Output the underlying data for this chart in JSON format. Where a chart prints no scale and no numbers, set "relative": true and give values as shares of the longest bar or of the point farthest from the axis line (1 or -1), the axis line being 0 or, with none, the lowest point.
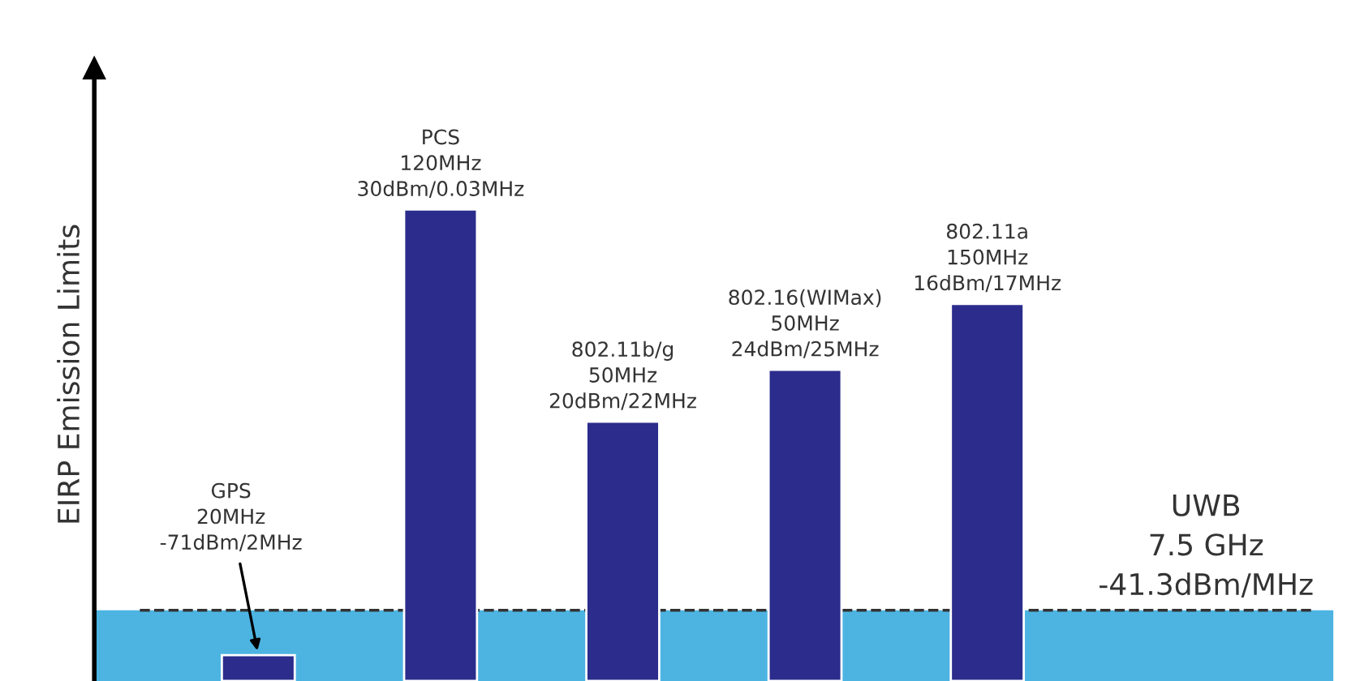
{
  "chart_data": {
    "type": "bar",
    "relative": true,
    "ylabel": "EIRP Emission Limits",
    "categories": [
      null,
      null,
      null,
      null,
      null
    ],
    "series": [
      {
        "color": "#2b2c8c",
        "values": [
          0.055,
          1,
          0.55,
          0.66,
          0.8
        ]
      }
    ],
    "bands": [
      {
        "axis": "y",
        "from": 0,
        "to": 0.15,
        "color": "#4db4e2"
      }
    ],
    "ref_lines": [
      {
        "axis": "y",
        "value": 0.15,
        "line_style": "dashed",
        "color": "#333333"
      }
    ],
    "annotations": [
      "GPS\n20MHz\n-71dBm/2MHz",
      "PCS\n120MHz\n30dBm/0.03MHz",
      "802.11b/g\n50MHz\n20dBm/22MHz",
      "802.16(WIMax)\n50MHz\n24dBm/25MHz",
      "802.11a\n150MHz\n16dBm/17MHz",
      "UWB\n7.5 GHz\n-41.3dBm/MHz"
    ]
  }
}
